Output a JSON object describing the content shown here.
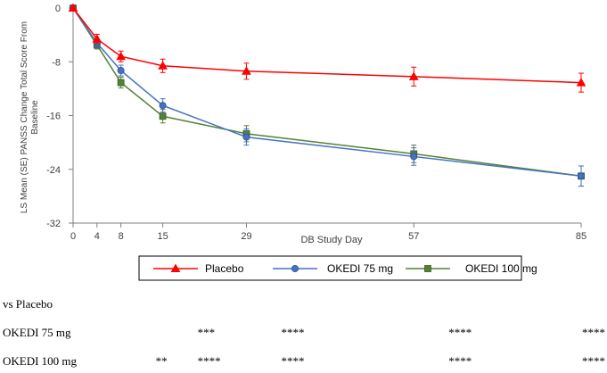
{
  "chart_data": {
    "type": "line",
    "ylabel": "LS Mean (SE) PANSS Change Total Score From Baseline",
    "xlabel": "DB Study Day",
    "x": [
      0,
      4,
      8,
      15,
      29,
      57,
      85
    ],
    "x_tick_labels": [
      "0",
      "4",
      "8",
      "15",
      "29",
      "57",
      "85"
    ],
    "ylim": [
      -32,
      0
    ],
    "y_ticks": [
      0,
      -8,
      -16,
      -24,
      -32
    ],
    "y_tick_labels": [
      "0",
      "-8",
      "-16",
      "-24",
      "-32"
    ],
    "grid": false,
    "legend_position": "bottom",
    "series": [
      {
        "name": "Placebo",
        "color": "#ff0000",
        "marker": "triangle",
        "values": [
          0,
          -4.6,
          -7.2,
          -8.6,
          -9.4,
          -10.2,
          -11.1
        ],
        "se": [
          0,
          0.7,
          0.8,
          1.0,
          1.2,
          1.4,
          1.4
        ]
      },
      {
        "name": "OKEDI 75 mg",
        "color": "#4472c4",
        "marker": "circle",
        "values": [
          0,
          -5.2,
          -9.3,
          -14.5,
          -19.2,
          -22.1,
          -25.0
        ],
        "se": [
          0,
          0.6,
          0.8,
          1.0,
          1.2,
          1.3,
          1.5
        ]
      },
      {
        "name": "OKEDI 100 mg",
        "color": "#548235",
        "marker": "square",
        "values": [
          0,
          -5.5,
          -11.1,
          -16.1,
          -18.7,
          -21.7,
          -25.0
        ],
        "se": [
          0,
          0.6,
          0.8,
          1.0,
          1.2,
          1.3,
          1.5
        ]
      }
    ]
  },
  "significance": {
    "header": "vs Placebo",
    "rows": [
      {
        "label": "OKEDI 75 mg",
        "marks": [
          {
            "day": 15,
            "text": "***"
          },
          {
            "day": 29,
            "text": "****"
          },
          {
            "day": 57,
            "text": "****"
          },
          {
            "day": 85,
            "text": "****"
          }
        ]
      },
      {
        "label": "OKEDI 100 mg",
        "marks": [
          {
            "day": 8,
            "text": "**"
          },
          {
            "day": 15,
            "text": "****"
          },
          {
            "day": 29,
            "text": "****"
          },
          {
            "day": 57,
            "text": "****"
          },
          {
            "day": 85,
            "text": "****"
          }
        ]
      }
    ]
  }
}
